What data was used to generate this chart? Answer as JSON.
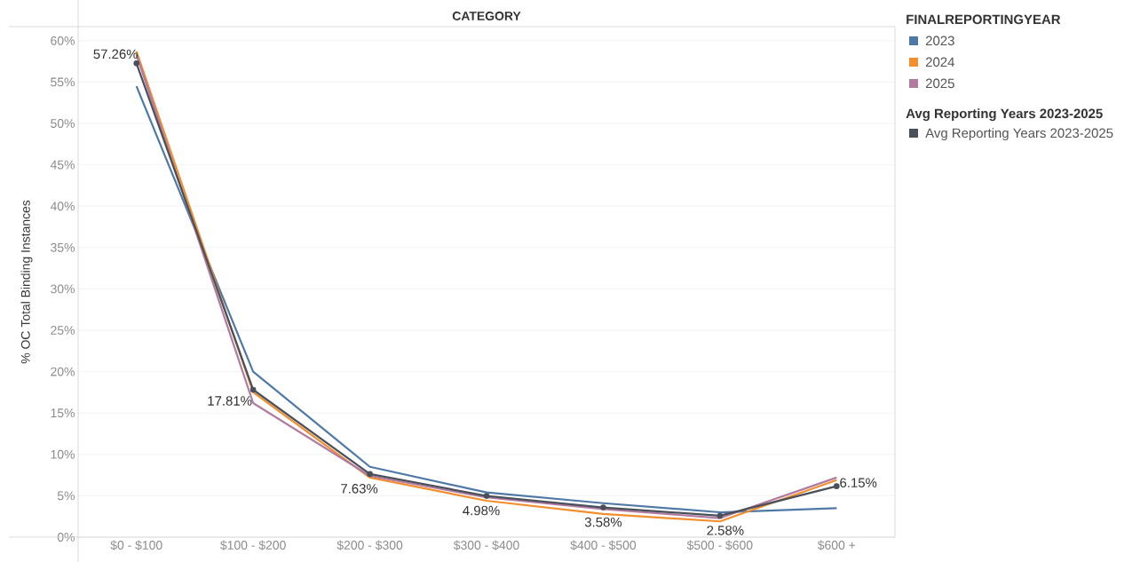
{
  "chart_data": {
    "type": "line",
    "xlabel": "CATEGORY",
    "ylabel": "% OC Total Binding Instances",
    "legend_title": "FINALREPORTINGYEAR",
    "annotations": [
      "Avg Reporting Years 2023-2025"
    ],
    "categories": [
      "$0 - $100",
      "$100 - $200",
      "$200 - $300",
      "$300 - $400",
      "$400 - $500",
      "$500 - $600",
      "$600 +"
    ],
    "series": [
      {
        "name": "2023",
        "color": "#4e79a7",
        "values": [
          54.5,
          20.0,
          8.5,
          5.4,
          4.1,
          3.0,
          3.5
        ]
      },
      {
        "name": "2024",
        "color": "#f28e2b",
        "values": [
          58.7,
          17.5,
          7.2,
          4.4,
          2.8,
          1.9,
          6.9
        ]
      },
      {
        "name": "2025",
        "color": "#b07aa1",
        "values": [
          58.3,
          16.2,
          7.4,
          4.8,
          3.4,
          2.3,
          7.2
        ]
      },
      {
        "name": "Avg Reporting Years 2023-2025",
        "color": "#49505a",
        "marker": "circle",
        "values": [
          57.26,
          17.81,
          7.63,
          4.98,
          3.58,
          2.58,
          6.15
        ],
        "value_labels": [
          "57.26%",
          "17.81%",
          "7.63%",
          "4.98%",
          "3.58%",
          "2.58%",
          "6.15%"
        ]
      }
    ],
    "ylim": [
      0,
      61.7
    ],
    "yticks": [
      {
        "value": 0,
        "label": "0%"
      },
      {
        "value": 5,
        "label": "5%"
      },
      {
        "value": 10,
        "label": "10%"
      },
      {
        "value": 15,
        "label": "15%"
      },
      {
        "value": 20,
        "label": "20%"
      },
      {
        "value": 25,
        "label": "25%"
      },
      {
        "value": 30,
        "label": "30%"
      },
      {
        "value": 35,
        "label": "35%"
      },
      {
        "value": 40,
        "label": "40%"
      },
      {
        "value": 45,
        "label": "45%"
      },
      {
        "value": 50,
        "label": "50%"
      },
      {
        "value": 55,
        "label": "55%"
      },
      {
        "value": 60,
        "label": "60%"
      }
    ],
    "grid": "y",
    "legend": "right",
    "marker": "none",
    "line_style": "solid"
  }
}
